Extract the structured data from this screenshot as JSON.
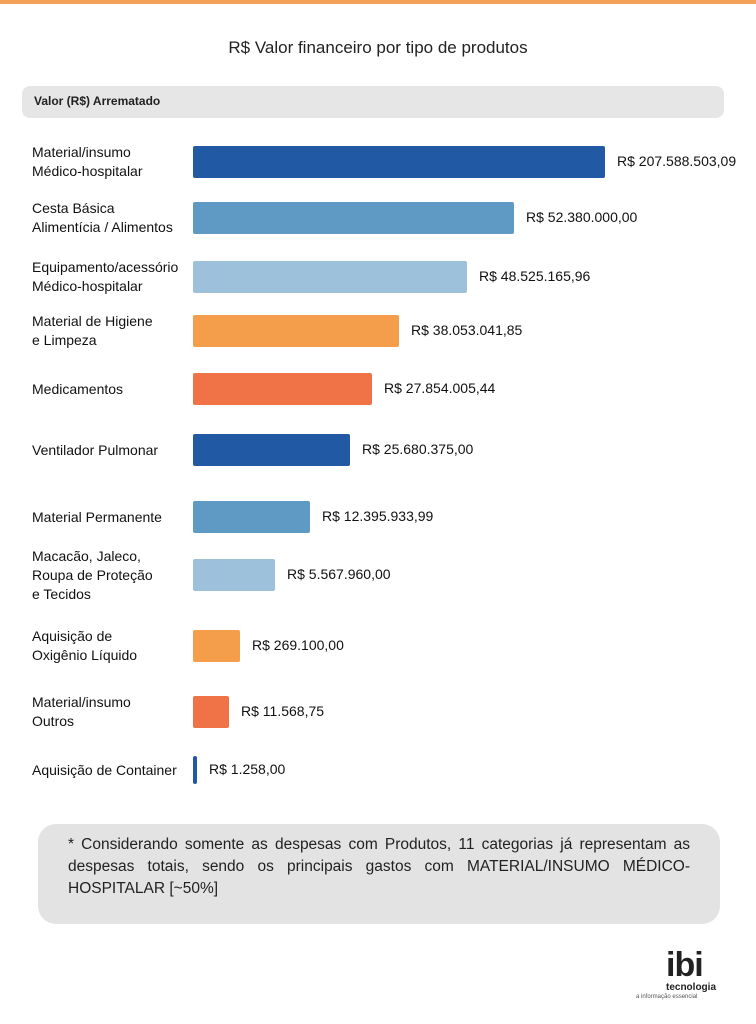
{
  "header": {
    "title": "R$ Valor financeiro por tipo de produtos",
    "subheader": "Valor (R$) Arrematado"
  },
  "chart_data": {
    "type": "bar",
    "orientation": "horizontal",
    "title": "R$ Valor financeiro por tipo de produtos",
    "ylabel": "Valor (R$) Arrematado",
    "categories": [
      "Material/insumo Médico-hospitalar",
      "Cesta Básica Alimentícia / Alimentos",
      "Equipamento/acessório Médico-hospitalar",
      "Material de Higiene e Limpeza",
      "Medicamentos",
      "Ventilador Pulmonar",
      "Material Permanente",
      "Macacão, Jaleco, Roupa de Proteção e Tecidos",
      "Aquisição de Oxigênio Líquido",
      "Material/insumo Outros",
      "Aquisição de Container"
    ],
    "values": [
      207588503.09,
      52380000.0,
      48525165.96,
      38053041.85,
      27854005.44,
      25680375.0,
      12395933.99,
      5567960.0,
      269100.0,
      11568.75,
      1258.0
    ],
    "value_labels": [
      "R$ 207.588.503,09",
      "R$ 52.380.000,00",
      "R$ 48.525.165,96",
      "R$ 38.053.041,85",
      "R$ 27.854.005,44",
      "R$ 25.680.375,00",
      "R$ 12.395.933,99",
      "R$ 5.567.960,00",
      "R$ 269.100,00",
      "R$ 11.568,75",
      "R$ 1.258,00"
    ],
    "bar_fill_fraction": [
      1.0,
      0.78,
      0.665,
      0.5,
      0.435,
      0.38,
      0.285,
      0.2,
      0.115,
      0.088,
      0.01
    ],
    "colors": [
      "#2259a5",
      "#5e9ac4",
      "#9dc1db",
      "#f49d4b",
      "#ef7346",
      "#2259a5",
      "#5e9ac4",
      "#9dc1db",
      "#f49d4b",
      "#ef7346",
      "#2259a5"
    ],
    "grid": false,
    "legend": "none"
  },
  "footnote": {
    "text": "* Considerando somente as despesas com Produtos, 11 categorias já representam as despesas totais, sendo os principais gastos com MATERIAL/INSUMO MÉDICO-HOSPITALAR [~50%]"
  },
  "logo": {
    "name": "ibi",
    "sub": "tecnologia",
    "tagline": "a informação essencial"
  }
}
